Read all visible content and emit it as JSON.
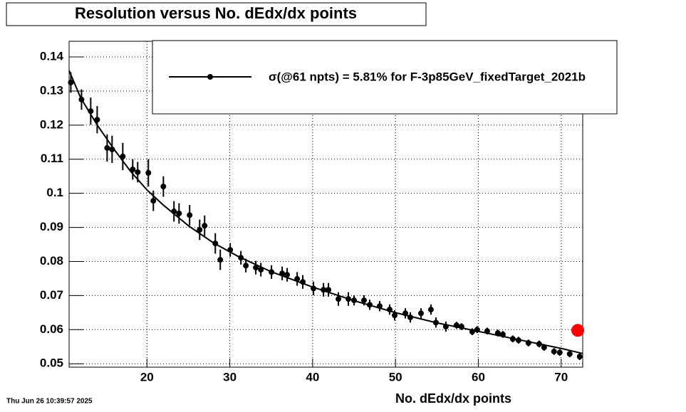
{
  "chart_data": {
    "type": "scatter",
    "title": "Resolution versus No. dEdx/dx points",
    "x_label": "No. dEdx/dx points",
    "timestamp": "Thu Jun 26 10:39:57 2025",
    "xlim": [
      10.6,
      72.6
    ],
    "ylim": [
      0.049,
      0.1446
    ],
    "xticks": [
      20,
      30,
      40,
      50,
      60,
      70
    ],
    "yticks": [
      0.05,
      0.06,
      0.07,
      0.08,
      0.09,
      0.1,
      0.11,
      0.12,
      0.13,
      0.14
    ],
    "grid": true,
    "series": [
      {
        "name": "σ(@61 npts) =  5.81% for F-3p85GeV_fixedTarget_2021b",
        "color": "#000000",
        "x": [
          10.81,
          12.1,
          13.21,
          13.99,
          15.19,
          15.79,
          17.08,
          18.28,
          18.88,
          20.17,
          20.77,
          21.98,
          23.26,
          23.87,
          25.15,
          26.36,
          26.96,
          28.25,
          28.85,
          30.05,
          31.34,
          31.94,
          33.14,
          33.75,
          35.03,
          36.32,
          36.92,
          38.13,
          38.81,
          40.1,
          41.31,
          41.91,
          43.11,
          44.31,
          45.0,
          46.2,
          46.89,
          48.09,
          49.3,
          49.9,
          51.19,
          51.79,
          53.08,
          54.28,
          54.88,
          56.08,
          57.37,
          57.97,
          59.26,
          59.86,
          61.07,
          62.35,
          62.96,
          64.16,
          64.85,
          66.05,
          67.34,
          67.94,
          69.14,
          69.83,
          71.03,
          72.23
        ],
        "values": [
          0.1325,
          0.1275,
          0.1241,
          0.1216,
          0.1133,
          0.1129,
          0.1108,
          0.107,
          0.1062,
          0.106,
          0.0978,
          0.102,
          0.0947,
          0.0941,
          0.0936,
          0.0893,
          0.0905,
          0.0853,
          0.0805,
          0.0834,
          0.0811,
          0.0788,
          0.0782,
          0.0776,
          0.0769,
          0.0765,
          0.0761,
          0.0749,
          0.074,
          0.0721,
          0.0717,
          0.0717,
          0.069,
          0.069,
          0.0686,
          0.0686,
          0.0673,
          0.0669,
          0.0659,
          0.0642,
          0.0648,
          0.0636,
          0.0648,
          0.0659,
          0.0621,
          0.0609,
          0.0613,
          0.0609,
          0.0594,
          0.06,
          0.0596,
          0.059,
          0.0586,
          0.0573,
          0.0569,
          0.0561,
          0.0558,
          0.0548,
          0.0536,
          0.0533,
          0.0529,
          0.0521
        ],
        "errors": [
          0.003,
          0.003,
          0.004,
          0.004,
          0.004,
          0.004,
          0.004,
          0.003,
          0.003,
          0.004,
          0.003,
          0.003,
          0.003,
          0.003,
          0.003,
          0.003,
          0.003,
          0.003,
          0.003,
          0.002,
          0.002,
          0.002,
          0.002,
          0.002,
          0.002,
          0.002,
          0.002,
          0.002,
          0.002,
          0.002,
          0.002,
          0.002,
          0.002,
          0.002,
          0.0015,
          0.0015,
          0.0015,
          0.0015,
          0.0015,
          0.0015,
          0.0015,
          0.0015,
          0.0015,
          0.0015,
          0.0015,
          0.0015,
          0.001,
          0.001,
          0.001,
          0.001,
          0.001,
          0.001,
          0.001,
          0.001,
          0.001,
          0.001,
          0.001,
          0.001,
          0.001,
          0.001,
          0.001,
          0.001
        ]
      }
    ],
    "fit": {
      "x": [
        10.6,
        12,
        14,
        16,
        18,
        20,
        22,
        25,
        28,
        31,
        35,
        40,
        45,
        50,
        55,
        60,
        65,
        70,
        72.6
      ],
      "y": [
        0.136,
        0.128,
        0.12,
        0.113,
        0.1065,
        0.101,
        0.0965,
        0.0905,
        0.0855,
        0.0815,
        0.077,
        0.0725,
        0.0685,
        0.065,
        0.062,
        0.0595,
        0.057,
        0.0545,
        0.053
      ]
    },
    "highlight": {
      "x": 72,
      "y": 0.0598,
      "color": "#ff0000"
    }
  }
}
